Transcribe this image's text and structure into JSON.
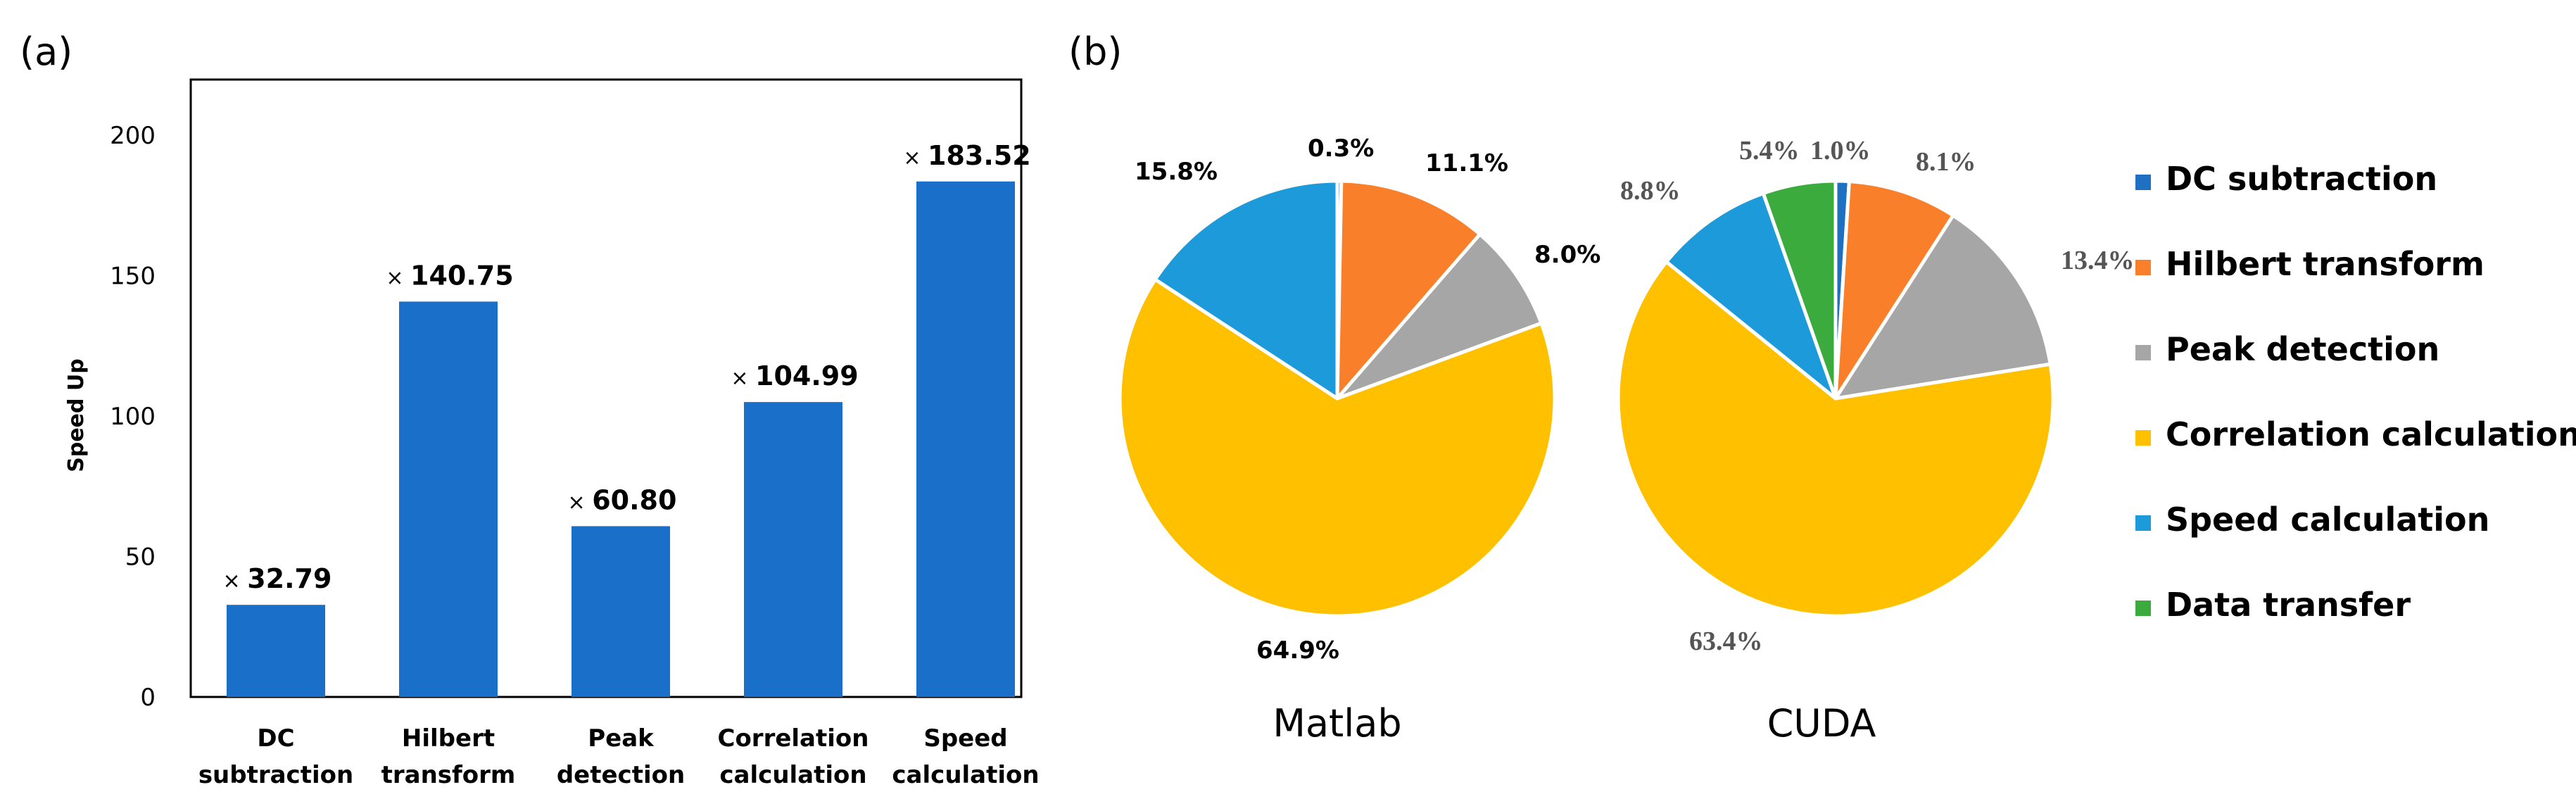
{
  "panels": {
    "a": "(a)",
    "b": "(b)"
  },
  "colors": {
    "bar": "#1a6fc9",
    "dc": "#1f6fc2",
    "hilbert": "#f97f2a",
    "peak": "#a6a6a6",
    "correlation": "#ffc000",
    "speed": "#1c9ad9",
    "transfer": "#3aab3c"
  },
  "chart_data": [
    {
      "type": "bar",
      "ylabel": "Speed Up",
      "ylim": [
        0,
        220
      ],
      "yticks": [
        "0",
        "50",
        "100",
        "150",
        "200"
      ],
      "grid": false,
      "categories": [
        [
          "DC",
          "subtraction"
        ],
        [
          "Hilbert",
          "transform"
        ],
        [
          "Peak",
          "detection"
        ],
        [
          "Correlation",
          "calculation"
        ],
        [
          "Speed",
          "calculation"
        ]
      ],
      "values": [
        32.79,
        140.75,
        60.8,
        104.99,
        183.52
      ],
      "data_labels": [
        "32.79",
        "140.75",
        "60.80",
        "104.99",
        "183.52"
      ],
      "label_prefix": "×"
    },
    {
      "type": "pie",
      "title": "Matlab",
      "start_series": "DC subtraction",
      "slices": [
        {
          "name": "DC subtraction",
          "value": 0.3,
          "label": "0.3%"
        },
        {
          "name": "Hilbert transform",
          "value": 11.1,
          "label": "11.1%"
        },
        {
          "name": "Peak detection",
          "value": 8.0,
          "label": "8.0%"
        },
        {
          "name": "Correlation calculation",
          "value": 64.9,
          "label": "64.9%"
        },
        {
          "name": "Speed calculation",
          "value": 15.8,
          "label": "15.8%"
        }
      ]
    },
    {
      "type": "pie",
      "title": "CUDA",
      "slices": [
        {
          "name": "DC subtraction",
          "value": 1.0,
          "label": "1.0%"
        },
        {
          "name": "Hilbert transform",
          "value": 8.1,
          "label": "8.1%"
        },
        {
          "name": "Peak detection",
          "value": 13.4,
          "label": "13.4%"
        },
        {
          "name": "Correlation calculation",
          "value": 63.4,
          "label": "63.4%"
        },
        {
          "name": "Speed calculation",
          "value": 8.8,
          "label": "8.8%"
        },
        {
          "name": "Data transfer",
          "value": 5.4,
          "label": "5.4%"
        }
      ]
    }
  ],
  "legend": [
    {
      "name": "DC subtraction",
      "color_key": "dc"
    },
    {
      "name": "Hilbert transform",
      "color_key": "hilbert"
    },
    {
      "name": "Peak detection",
      "color_key": "peak"
    },
    {
      "name": "Correlation calculation",
      "color_key": "correlation"
    },
    {
      "name": "Speed calculation",
      "color_key": "speed"
    },
    {
      "name": "Data transfer",
      "color_key": "transfer"
    }
  ]
}
